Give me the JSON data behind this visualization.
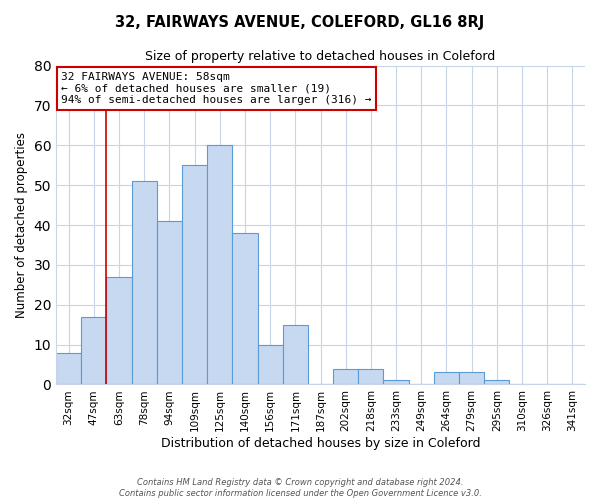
{
  "title": "32, FAIRWAYS AVENUE, COLEFORD, GL16 8RJ",
  "subtitle": "Size of property relative to detached houses in Coleford",
  "xlabel": "Distribution of detached houses by size in Coleford",
  "ylabel": "Number of detached properties",
  "bar_labels": [
    "32sqm",
    "47sqm",
    "63sqm",
    "78sqm",
    "94sqm",
    "109sqm",
    "125sqm",
    "140sqm",
    "156sqm",
    "171sqm",
    "187sqm",
    "202sqm",
    "218sqm",
    "233sqm",
    "249sqm",
    "264sqm",
    "279sqm",
    "295sqm",
    "310sqm",
    "326sqm",
    "341sqm"
  ],
  "bar_heights": [
    8,
    17,
    27,
    51,
    41,
    55,
    60,
    38,
    10,
    15,
    0,
    4,
    4,
    1,
    0,
    3,
    3,
    1,
    0,
    0,
    0
  ],
  "bar_color": "#c6d9f1",
  "bar_edge_color": "#5b9bd5",
  "ylim": [
    0,
    80
  ],
  "yticks": [
    0,
    10,
    20,
    30,
    40,
    50,
    60,
    70,
    80
  ],
  "vline_x_index": 2,
  "vline_color": "#cc0000",
  "annotation_title": "32 FAIRWAYS AVENUE: 58sqm",
  "annotation_line1": "← 6% of detached houses are smaller (19)",
  "annotation_line2": "94% of semi-detached houses are larger (316) →",
  "annotation_box_color": "#ffffff",
  "annotation_box_edge_color": "#cc0000",
  "footer_line1": "Contains HM Land Registry data © Crown copyright and database right 2024.",
  "footer_line2": "Contains public sector information licensed under the Open Government Licence v3.0.",
  "background_color": "#ffffff",
  "grid_color": "#c8d4e8"
}
